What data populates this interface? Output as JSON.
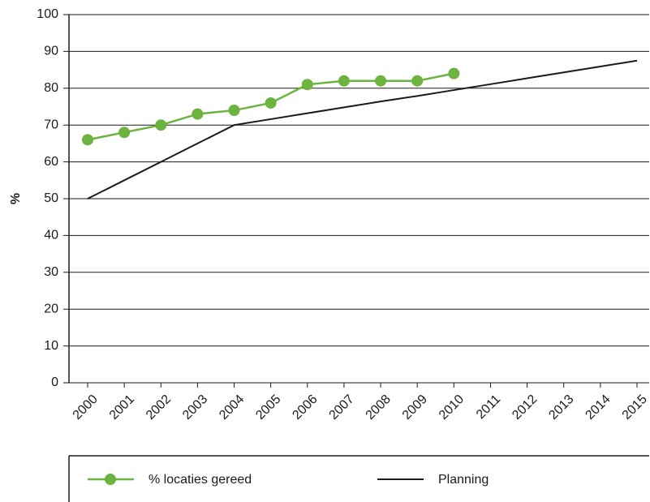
{
  "chart_data": {
    "type": "line",
    "y_label": "%",
    "categories": [
      "2000",
      "2001",
      "2002",
      "2003",
      "2004",
      "2005",
      "2006",
      "2007",
      "2008",
      "2009",
      "2010",
      "2011",
      "2012",
      "2013",
      "2014",
      "2015"
    ],
    "series": [
      {
        "name": "% locaties gereed",
        "color": "#6db33f",
        "marker": "circle",
        "values": [
          66,
          68,
          70,
          73,
          74,
          76,
          81,
          82,
          82,
          82,
          84,
          null,
          null,
          null,
          null,
          null
        ]
      },
      {
        "name": "Planning",
        "color": "#1a1a1a",
        "values": [
          50,
          55,
          60,
          65,
          70,
          71.6,
          73.2,
          74.8,
          76.4,
          77.9,
          79.5,
          81.1,
          82.7,
          84.3,
          85.9,
          87.5
        ]
      }
    ],
    "ylim": [
      0,
      100
    ],
    "yticks": [
      0,
      10,
      20,
      30,
      40,
      50,
      60,
      70,
      80,
      90,
      100
    ],
    "grid": true
  }
}
